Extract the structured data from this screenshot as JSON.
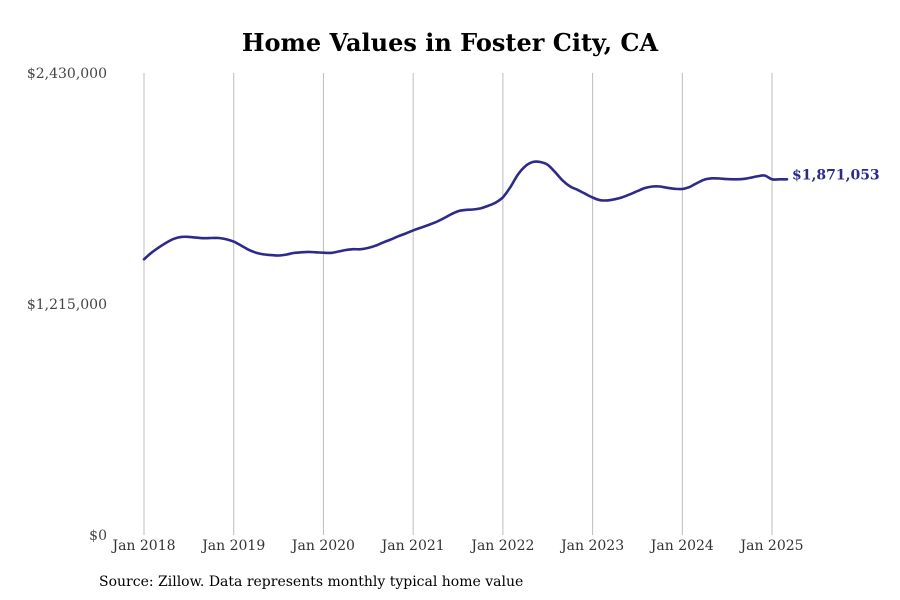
{
  "chart_data": {
    "type": "line",
    "title": "Home Values in Foster City, CA",
    "xlabel": "",
    "ylabel": "",
    "x_range": [
      "2018-01",
      "2025-03"
    ],
    "ylim": [
      0,
      2430000
    ],
    "y_ticks": [
      {
        "value": 0,
        "label": "$0"
      },
      {
        "value": 1215000,
        "label": "$1,215,000"
      },
      {
        "value": 2430000,
        "label": "$2,430,000"
      }
    ],
    "x_ticks": [
      "Jan 2018",
      "Jan 2019",
      "Jan 2020",
      "Jan 2021",
      "Jan 2022",
      "Jan 2023",
      "Jan 2024",
      "Jan 2025"
    ],
    "grid": "vertical",
    "line_color": "#2e2a8a",
    "series": [
      {
        "x": [
          "2018-01",
          "2018-02",
          "2018-03",
          "2018-04",
          "2018-05",
          "2018-06",
          "2018-07",
          "2018-08",
          "2018-09",
          "2018-10",
          "2018-11",
          "2018-12",
          "2019-01",
          "2019-02",
          "2019-03",
          "2019-04",
          "2019-05",
          "2019-06",
          "2019-07",
          "2019-08",
          "2019-09",
          "2019-10",
          "2019-11",
          "2019-12",
          "2020-01",
          "2020-02",
          "2020-03",
          "2020-04",
          "2020-05",
          "2020-06",
          "2020-07",
          "2020-08",
          "2020-09",
          "2020-10",
          "2020-11",
          "2020-12",
          "2021-01",
          "2021-02",
          "2021-03",
          "2021-04",
          "2021-05",
          "2021-06",
          "2021-07",
          "2021-08",
          "2021-09",
          "2021-10",
          "2021-11",
          "2021-12",
          "2022-01",
          "2022-02",
          "2022-03",
          "2022-04",
          "2022-05",
          "2022-06",
          "2022-07",
          "2022-08",
          "2022-09",
          "2022-10",
          "2022-11",
          "2022-12",
          "2023-01",
          "2023-02",
          "2023-03",
          "2023-04",
          "2023-05",
          "2023-06",
          "2023-07",
          "2023-08",
          "2023-09",
          "2023-10",
          "2023-11",
          "2023-12",
          "2024-01",
          "2024-02",
          "2024-03",
          "2024-04",
          "2024-05",
          "2024-06",
          "2024-07",
          "2024-08",
          "2024-09",
          "2024-10",
          "2024-11",
          "2024-12",
          "2025-01",
          "2025-02",
          "2025-03"
        ],
        "values": [
          1450000,
          1485000,
          1513000,
          1538000,
          1558000,
          1568000,
          1568000,
          1564000,
          1561000,
          1562000,
          1562000,
          1556000,
          1543000,
          1522000,
          1500000,
          1485000,
          1476000,
          1472000,
          1470000,
          1475000,
          1483000,
          1487000,
          1489000,
          1487000,
          1485000,
          1484000,
          1491000,
          1499000,
          1503000,
          1503000,
          1510000,
          1522000,
          1539000,
          1554000,
          1571000,
          1586000,
          1602000,
          1616000,
          1630000,
          1645000,
          1664000,
          1685000,
          1703000,
          1710000,
          1712000,
          1718000,
          1731000,
          1748000,
          1776000,
          1830000,
          1895000,
          1940000,
          1962000,
          1962000,
          1947000,
          1908000,
          1864000,
          1833000,
          1815000,
          1795000,
          1775000,
          1761000,
          1760000,
          1766000,
          1777000,
          1792000,
          1809000,
          1825000,
          1833000,
          1833000,
          1826000,
          1821000,
          1820000,
          1831000,
          1852000,
          1870000,
          1876000,
          1875000,
          1872000,
          1871000,
          1872000,
          1878000,
          1886000,
          1891000,
          1871053,
          1871053,
          1871053
        ]
      }
    ],
    "end_label": "$1,871,053"
  },
  "source_note": "Source: Zillow. Data represents monthly typical home value"
}
